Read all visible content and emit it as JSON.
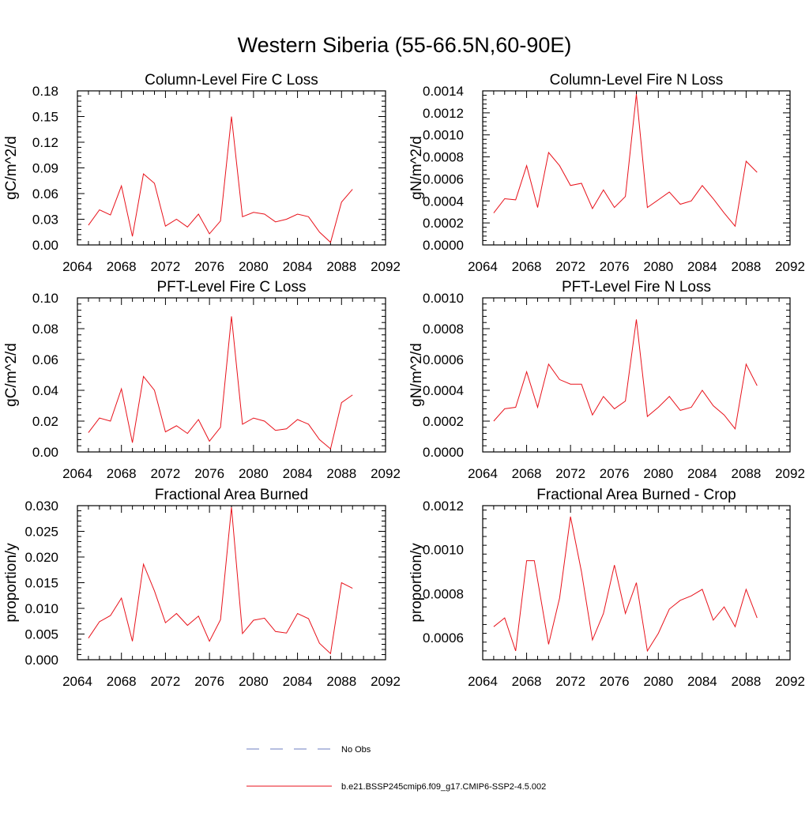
{
  "page": {
    "title": "Western Siberia (55-66.5N,60-90E)",
    "line_color": "#e8121b",
    "obs_color": "#6e7cc2"
  },
  "legend": {
    "items": [
      {
        "label": "No Obs",
        "style": "dashed",
        "color": "#6e7cc2"
      },
      {
        "label": "b.e21.BSSP245cmip6.f09_g17.CMIP6-SSP2-4.5.002",
        "style": "solid",
        "color": "#e8121b"
      }
    ]
  },
  "chart_data": [
    {
      "type": "line",
      "title": "Column-Level Fire C Loss",
      "ylabel": "gC/m^2/d",
      "xlim": [
        2064,
        2092
      ],
      "ylim": [
        0,
        0.18
      ],
      "xticks": [
        2064,
        2068,
        2072,
        2076,
        2080,
        2084,
        2088,
        2092
      ],
      "xtick_labels": [
        "2064",
        "2068",
        "2072",
        "2076",
        "2080",
        "2084",
        "2088",
        "2092"
      ],
      "yticks": [
        0,
        0.03,
        0.06,
        0.09,
        0.12,
        0.15,
        0.18
      ],
      "ytick_labels": [
        "0.00",
        "0.03",
        "0.06",
        "0.09",
        "0.12",
        "0.15",
        "0.18"
      ],
      "x": [
        2065,
        2066,
        2067,
        2068,
        2069,
        2070,
        2071,
        2072,
        2073,
        2074,
        2075,
        2076,
        2077,
        2078,
        2079,
        2080,
        2081,
        2082,
        2083,
        2084,
        2085,
        2086,
        2087,
        2088,
        2089
      ],
      "series": [
        {
          "values": [
            0.023,
            0.041,
            0.035,
            0.069,
            0.01,
            0.083,
            0.072,
            0.022,
            0.03,
            0.021,
            0.036,
            0.013,
            0.028,
            0.15,
            0.033,
            0.038,
            0.036,
            0.027,
            0.03,
            0.036,
            0.033,
            0.015,
            0.003,
            0.05,
            0.065
          ]
        }
      ]
    },
    {
      "type": "line",
      "title": "Column-Level Fire N Loss",
      "ylabel": "gN/m^2/d",
      "xlim": [
        2064,
        2092
      ],
      "ylim": [
        0,
        0.0014
      ],
      "xticks": [
        2064,
        2068,
        2072,
        2076,
        2080,
        2084,
        2088,
        2092
      ],
      "xtick_labels": [
        "2064",
        "2068",
        "2072",
        "2076",
        "2080",
        "2084",
        "2088",
        "2092"
      ],
      "yticks": [
        0,
        0.0002,
        0.0004,
        0.0006,
        0.0008,
        0.001,
        0.0012,
        0.0014
      ],
      "ytick_labels": [
        "0.0000",
        "0.0002",
        "0.0004",
        "0.0006",
        "0.0008",
        "0.0010",
        "0.0012",
        "0.0014"
      ],
      "x": [
        2065,
        2066,
        2067,
        2068,
        2069,
        2070,
        2071,
        2072,
        2073,
        2074,
        2075,
        2076,
        2077,
        2078,
        2079,
        2080,
        2081,
        2082,
        2083,
        2084,
        2085,
        2086,
        2087,
        2088,
        2089
      ],
      "series": [
        {
          "values": [
            0.00029,
            0.00042,
            0.00041,
            0.00072,
            0.00034,
            0.00084,
            0.00072,
            0.00054,
            0.00056,
            0.00033,
            0.0005,
            0.00034,
            0.00044,
            0.00137,
            0.00034,
            0.00041,
            0.00048,
            0.00037,
            0.0004,
            0.00054,
            0.00042,
            0.00029,
            0.00017,
            0.00076,
            0.00066
          ]
        }
      ]
    },
    {
      "type": "line",
      "title": "PFT-Level Fire C Loss",
      "ylabel": "gC/m^2/d",
      "xlim": [
        2064,
        2092
      ],
      "ylim": [
        0,
        0.1
      ],
      "xticks": [
        2064,
        2068,
        2072,
        2076,
        2080,
        2084,
        2088,
        2092
      ],
      "xtick_labels": [
        "2064",
        "2068",
        "2072",
        "2076",
        "2080",
        "2084",
        "2088",
        "2092"
      ],
      "yticks": [
        0,
        0.02,
        0.04,
        0.06,
        0.08,
        0.1
      ],
      "ytick_labels": [
        "0.00",
        "0.02",
        "0.04",
        "0.06",
        "0.08",
        "0.10"
      ],
      "x": [
        2065,
        2066,
        2067,
        2068,
        2069,
        2070,
        2071,
        2072,
        2073,
        2074,
        2075,
        2076,
        2077,
        2078,
        2079,
        2080,
        2081,
        2082,
        2083,
        2084,
        2085,
        2086,
        2087,
        2088,
        2089
      ],
      "series": [
        {
          "values": [
            0.0125,
            0.022,
            0.02,
            0.041,
            0.006,
            0.049,
            0.04,
            0.013,
            0.017,
            0.012,
            0.021,
            0.007,
            0.016,
            0.088,
            0.018,
            0.022,
            0.02,
            0.014,
            0.015,
            0.021,
            0.018,
            0.008,
            0.002,
            0.032,
            0.037
          ]
        }
      ]
    },
    {
      "type": "line",
      "title": "PFT-Level Fire N Loss",
      "ylabel": "gN/m^2/d",
      "xlim": [
        2064,
        2092
      ],
      "ylim": [
        0,
        0.001
      ],
      "xticks": [
        2064,
        2068,
        2072,
        2076,
        2080,
        2084,
        2088,
        2092
      ],
      "xtick_labels": [
        "2064",
        "2068",
        "2072",
        "2076",
        "2080",
        "2084",
        "2088",
        "2092"
      ],
      "yticks": [
        0,
        0.0002,
        0.0004,
        0.0006,
        0.0008,
        0.001
      ],
      "ytick_labels": [
        "0.0000",
        "0.0002",
        "0.0004",
        "0.0006",
        "0.0008",
        "0.0010"
      ],
      "x": [
        2065,
        2066,
        2067,
        2068,
        2069,
        2070,
        2071,
        2072,
        2073,
        2074,
        2075,
        2076,
        2077,
        2078,
        2079,
        2080,
        2081,
        2082,
        2083,
        2084,
        2085,
        2086,
        2087,
        2088,
        2089
      ],
      "series": [
        {
          "values": [
            0.0002,
            0.00028,
            0.00029,
            0.00052,
            0.00029,
            0.00057,
            0.00047,
            0.00044,
            0.00044,
            0.00024,
            0.00036,
            0.00028,
            0.00033,
            0.00086,
            0.00023,
            0.00029,
            0.00036,
            0.00027,
            0.00029,
            0.0004,
            0.0003,
            0.00024,
            0.00015,
            0.00057,
            0.00043
          ]
        }
      ]
    },
    {
      "type": "line",
      "title": "Fractional Area Burned",
      "ylabel": "proportion/y",
      "xlim": [
        2064,
        2092
      ],
      "ylim": [
        0,
        0.03
      ],
      "xticks": [
        2064,
        2068,
        2072,
        2076,
        2080,
        2084,
        2088,
        2092
      ],
      "xtick_labels": [
        "2064",
        "2068",
        "2072",
        "2076",
        "2080",
        "2084",
        "2088",
        "2092"
      ],
      "yticks": [
        0,
        0.005,
        0.01,
        0.015,
        0.02,
        0.025,
        0.03
      ],
      "ytick_labels": [
        "0.000",
        "0.005",
        "0.010",
        "0.015",
        "0.020",
        "0.025",
        "0.030"
      ],
      "x": [
        2065,
        2066,
        2067,
        2068,
        2069,
        2070,
        2071,
        2072,
        2073,
        2074,
        2075,
        2076,
        2077,
        2078,
        2079,
        2080,
        2081,
        2082,
        2083,
        2084,
        2085,
        2086,
        2087,
        2088,
        2089
      ],
      "series": [
        {
          "values": [
            0.0042,
            0.0074,
            0.0086,
            0.012,
            0.0036,
            0.0186,
            0.0134,
            0.0072,
            0.009,
            0.0067,
            0.0085,
            0.0036,
            0.0078,
            0.0297,
            0.0051,
            0.0077,
            0.0081,
            0.0055,
            0.0052,
            0.009,
            0.008,
            0.0032,
            0.0012,
            0.015,
            0.0139
          ]
        }
      ]
    },
    {
      "type": "line",
      "title": "Fractional Area Burned - Crop",
      "ylabel": "proportion/y",
      "xlim": [
        2064,
        2092
      ],
      "ylim": [
        0.0005,
        0.0012
      ],
      "xticks": [
        2064,
        2068,
        2072,
        2076,
        2080,
        2084,
        2088,
        2092
      ],
      "xtick_labels": [
        "2064",
        "2068",
        "2072",
        "2076",
        "2080",
        "2084",
        "2088",
        "2092"
      ],
      "yticks": [
        0.0006,
        0.0008,
        0.001,
        0.0012
      ],
      "ytick_labels": [
        "0.0006",
        "0.0008",
        "0.0010",
        "0.0012"
      ],
      "x": [
        2065,
        2066,
        2067,
        2068,
        2068.7,
        2070,
        2071,
        2072,
        2073,
        2074,
        2075,
        2076,
        2077,
        2078,
        2079,
        2080,
        2081,
        2082,
        2083,
        2084,
        2085,
        2086,
        2087,
        2088,
        2089
      ],
      "series": [
        {
          "values": [
            0.00065,
            0.00069,
            0.00054,
            0.00095,
            0.00095,
            0.00057,
            0.00078,
            0.00115,
            0.0009,
            0.00059,
            0.00071,
            0.00093,
            0.00071,
            0.00085,
            0.00054,
            0.00062,
            0.00073,
            0.00077,
            0.00079,
            0.00082,
            0.00068,
            0.00074,
            0.00065,
            0.00082,
            0.00069
          ]
        }
      ]
    }
  ]
}
